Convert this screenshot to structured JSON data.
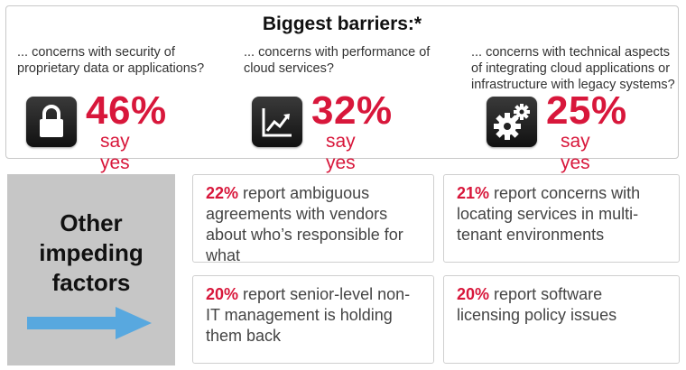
{
  "barriers": {
    "title": "Biggest barriers:*",
    "items": [
      {
        "description": "... concerns with security of proprietary data or applications?",
        "percent": "46%",
        "say_yes": "say yes",
        "icon": "lock-icon"
      },
      {
        "description": "... concerns with performance of cloud services?",
        "percent": "32%",
        "say_yes": "say yes",
        "icon": "trend-chart-icon"
      },
      {
        "description": "... concerns with technical aspects of integrating cloud applications or infrastructure with legacy systems?",
        "percent": "25%",
        "say_yes": "say yes",
        "icon": "gears-icon"
      }
    ]
  },
  "other": {
    "title": "Other impeding factors",
    "arrow_color": "#58a8df"
  },
  "factors": [
    {
      "percent": "22%",
      "text": "report ambiguous agreements with vendors about who’s responsible for what"
    },
    {
      "percent": "21%",
      "text": "report concerns with locating services in multi-tenant environments"
    },
    {
      "percent": "20%",
      "text": "report senior-level non-IT management is holding them back"
    },
    {
      "percent": "20%",
      "text": "report software licensing policy issues"
    }
  ],
  "colors": {
    "accent": "#d8173b",
    "panel_gray": "#c6c6c6"
  }
}
